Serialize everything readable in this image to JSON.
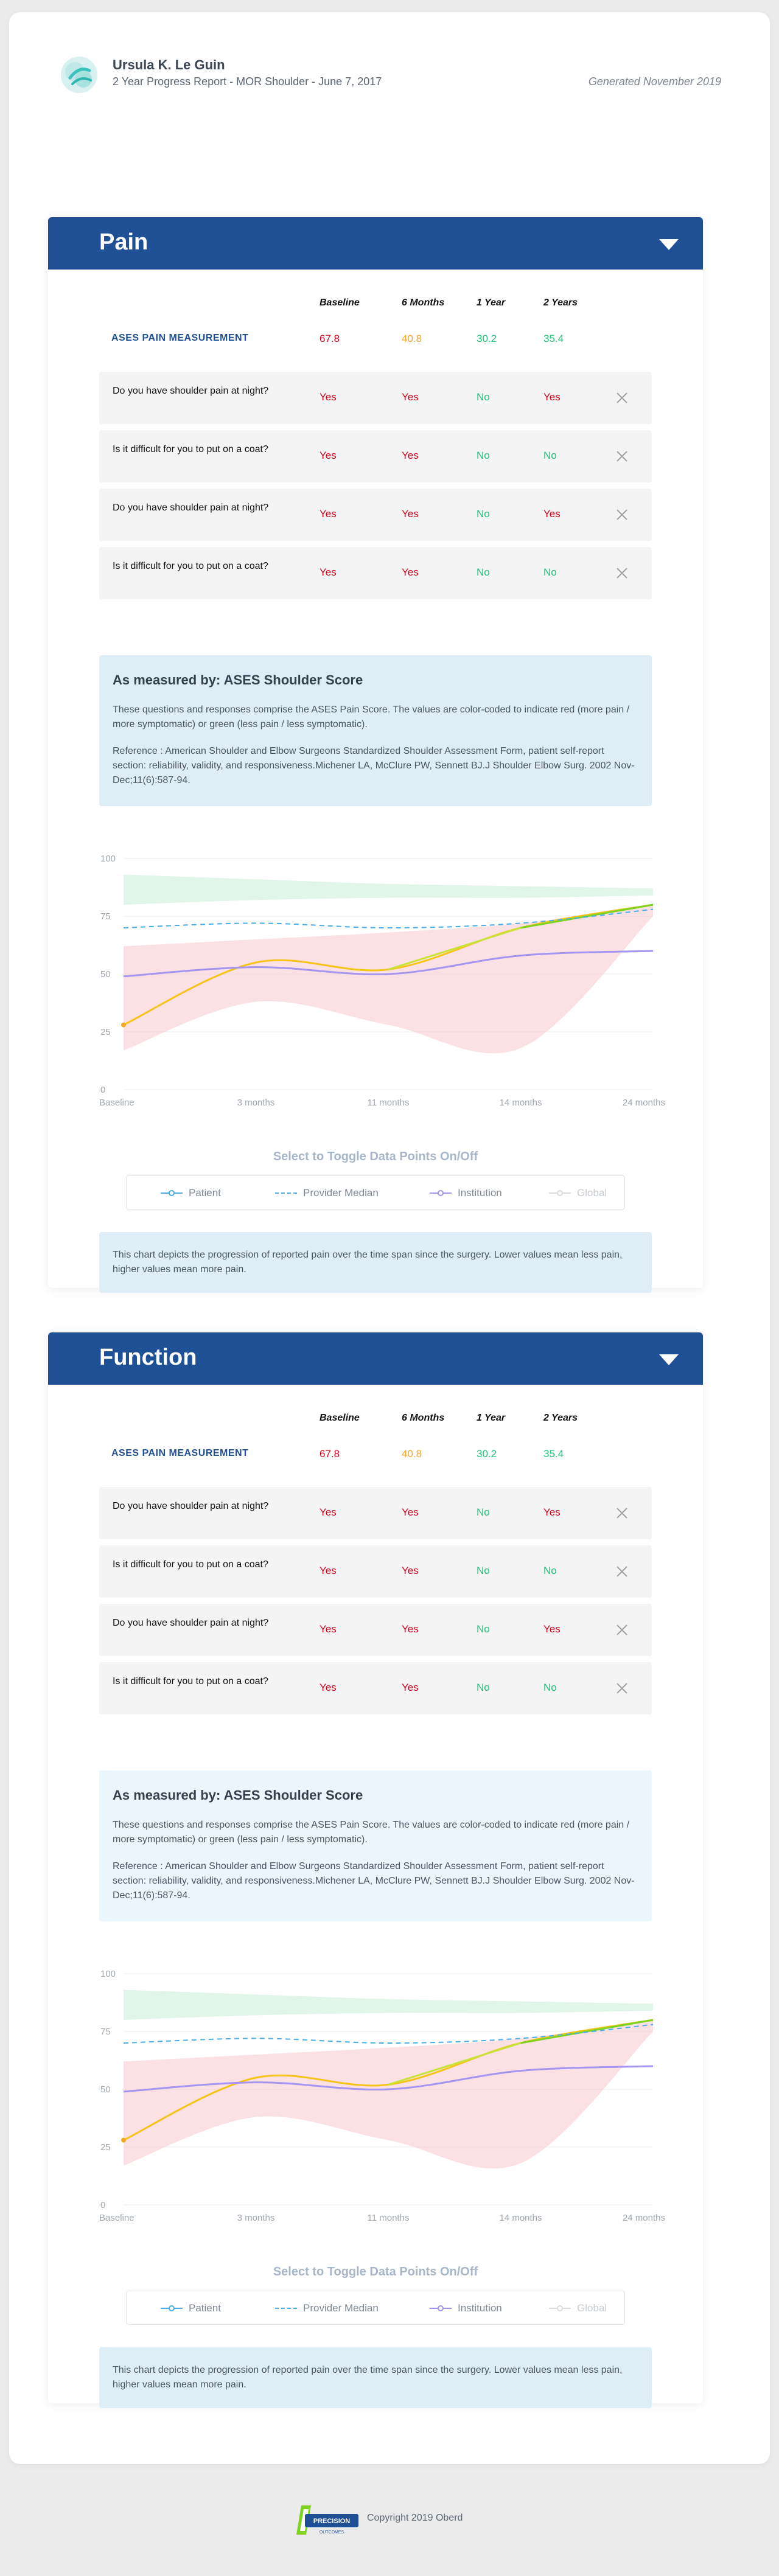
{
  "report": {
    "patient_name": "Ursula K. Le Guin",
    "subtitle": "2 Year Progress Report - MOR Shoulder - June 7, 2017",
    "generated": "Generated November 2019"
  },
  "columns": [
    "Baseline",
    "6 Months",
    "1 Year",
    "2 Years"
  ],
  "colors": {
    "header": "#1f4f94",
    "bad": "#d0021b",
    "mid": "#f5a623",
    "good": "#21c17a"
  },
  "sections": [
    {
      "title": "Pain",
      "score_label": "ASES PAIN MEASUREMENT",
      "scores": [
        "67.8",
        "40.8",
        "30.2",
        "35.4"
      ],
      "questions": [
        {
          "text": "Do you have shoulder pain at night?",
          "answers": [
            "Yes",
            "Yes",
            "No",
            "Yes"
          ]
        },
        {
          "text": "Is it difficult for you to put on a coat?",
          "answers": [
            "Yes",
            "Yes",
            "No",
            "No"
          ]
        },
        {
          "text": "Do you have shoulder pain at night?",
          "answers": [
            "Yes",
            "Yes",
            "No",
            "Yes"
          ]
        },
        {
          "text": "Is it difficult for you to put on a coat?",
          "answers": [
            "Yes",
            "Yes",
            "No",
            "No"
          ]
        }
      ],
      "info": {
        "title": "As measured by: ASES Shoulder Score",
        "p1": "These questions and responses comprise the ASES Pain Score. The values are color-coded to indicate red (more pain / more symptomatic) or green (less pain / less symptomatic).",
        "p2": "Reference : American Shoulder and Elbow Surgeons Standardized Shoulder Assessment Form, patient self-report section: reliability, validity, and responsiveness.Michener LA, McClure PW, Sennett BJ.J Shoulder Elbow Surg. 2002 Nov-Dec;11(6):587-94."
      },
      "toggle_title": "Select to Toggle Data Points On/Off",
      "legend": [
        "Patient",
        "Provider Median",
        "Institution",
        "Global"
      ],
      "description": "This chart depicts the progression of reported pain over the time span since the surgery. Lower values mean less pain, higher values mean more pain."
    },
    {
      "title": "Function",
      "score_label": "ASES PAIN MEASUREMENT",
      "scores": [
        "67.8",
        "40.8",
        "30.2",
        "35.4"
      ],
      "questions": [
        {
          "text": "Do you have shoulder pain at night?",
          "answers": [
            "Yes",
            "Yes",
            "No",
            "Yes"
          ]
        },
        {
          "text": "Is it difficult for you to put on a coat?",
          "answers": [
            "Yes",
            "Yes",
            "No",
            "No"
          ]
        },
        {
          "text": "Do you have shoulder pain at night?",
          "answers": [
            "Yes",
            "Yes",
            "No",
            "Yes"
          ]
        },
        {
          "text": "Is it difficult for you to put on a coat?",
          "answers": [
            "Yes",
            "Yes",
            "No",
            "No"
          ]
        }
      ],
      "info": {
        "title": "As measured by: ASES Shoulder Score",
        "p1": "These questions and responses comprise the ASES Pain Score. The values are color-coded to indicate red (more pain / more symptomatic) or green (less pain / less symptomatic).",
        "p2": "Reference : American Shoulder and Elbow Surgeons Standardized Shoulder Assessment Form, patient self-report section: reliability, validity, and responsiveness.Michener LA, McClure PW, Sennett BJ.J Shoulder Elbow Surg. 2002 Nov-Dec;11(6):587-94."
      },
      "toggle_title": "Select to Toggle Data Points On/Off",
      "legend": [
        "Patient",
        "Provider Median",
        "Institution",
        "Global"
      ],
      "description": "This chart depicts the progression of reported pain over the time span since the surgery. Lower values mean less pain, higher values mean more pain."
    }
  ],
  "chart_data": [
    {
      "type": "line",
      "x": [
        "Baseline",
        "3 months",
        "11 months",
        "14 months",
        "24 months"
      ],
      "ylim": [
        0,
        100
      ],
      "yticks": [
        0,
        25,
        50,
        75,
        100
      ],
      "grid": true,
      "series": [
        {
          "name": "Patient",
          "color": "#f5c518",
          "values": [
            28,
            55,
            52,
            70,
            80
          ]
        },
        {
          "name": "Provider Median",
          "color": "#4aaee8",
          "dashed": true,
          "values": [
            70,
            72,
            70,
            72,
            78
          ]
        },
        {
          "name": "Institution",
          "color": "#a495f0",
          "values": [
            49,
            53,
            50,
            58,
            60
          ]
        }
      ],
      "bands": [
        {
          "name": "Global",
          "color": "#f7c6cd",
          "lower": [
            17,
            38,
            28,
            18,
            75
          ],
          "upper": [
            62,
            65,
            68,
            72,
            80
          ]
        },
        {
          "name": "Global",
          "color": "#c9ecd5",
          "lower": [
            80,
            82,
            83,
            83,
            84
          ],
          "upper": [
            93,
            91,
            89,
            88,
            87
          ]
        }
      ]
    },
    {
      "type": "line",
      "x": [
        "Baseline",
        "3 months",
        "11 months",
        "14 months",
        "24 months"
      ],
      "ylim": [
        0,
        100
      ],
      "yticks": [
        0,
        25,
        50,
        75,
        100
      ],
      "grid": true,
      "series": [
        {
          "name": "Patient",
          "color": "#f5c518",
          "values": [
            28,
            55,
            52,
            70,
            80
          ]
        },
        {
          "name": "Provider Median",
          "color": "#4aaee8",
          "dashed": true,
          "values": [
            70,
            72,
            70,
            72,
            78
          ]
        },
        {
          "name": "Institution",
          "color": "#a495f0",
          "values": [
            49,
            53,
            50,
            58,
            60
          ]
        }
      ],
      "bands": [
        {
          "name": "Global",
          "color": "#f7c6cd",
          "lower": [
            17,
            38,
            28,
            18,
            75
          ],
          "upper": [
            62,
            65,
            68,
            72,
            80
          ]
        },
        {
          "name": "Global",
          "color": "#c9ecd5",
          "lower": [
            80,
            82,
            83,
            83,
            84
          ],
          "upper": [
            93,
            91,
            89,
            88,
            87
          ]
        }
      ]
    }
  ],
  "footer": {
    "logo_text_1": "PRECISION",
    "logo_text_2": "OUTCOMES",
    "copyright": "Copyright 2019 Oberd"
  }
}
